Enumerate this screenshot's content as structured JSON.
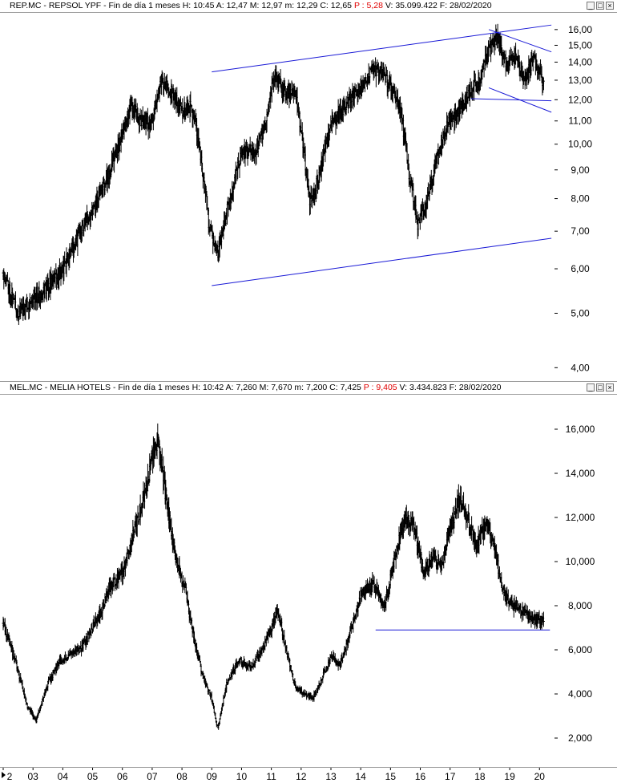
{
  "panels": [
    {
      "title_pre": "REP.MC - REPSOL YPF - Fin de día 1 meses  H: 10:45  A: 12,47  M: 12,97  m: 12,29  C: 12,65  ",
      "title_p": "P : 5,28",
      "title_post": "  V: 35.099.422  F: 28/02/2020",
      "window_controls": [
        "_",
        "□",
        "×"
      ]
    },
    {
      "title_pre": "MEL.MC - MELIA HOTELS - Fin de día 1 meses  H: 10:42  A: 7,260  M: 7,670  m: 7,200  C: 7,425  ",
      "title_p": "P : 9,405",
      "title_post": "  V: 3.434.823  F: 28/02/2020",
      "window_controls": [
        "_",
        "□",
        "×"
      ]
    }
  ],
  "colors": {
    "candle": "#000000",
    "trendline": "#1a1ad6",
    "frame": "#9a9a9a",
    "price_change": "#e00000"
  },
  "chart_data": [
    {
      "type": "candlestick",
      "name": "REP.MC - REPSOL YPF",
      "scale": "log",
      "ylim": [
        3.9,
        16.8
      ],
      "yticks": [
        4,
        5,
        6,
        7,
        8,
        9,
        10,
        11,
        12,
        13,
        14,
        15,
        16
      ],
      "ytick_labels": [
        "4,00",
        "5,00",
        "6,00",
        "7,00",
        "8,00",
        "9,00",
        "10,00",
        "11,00",
        "12,00",
        "13,00",
        "14,00",
        "15,00",
        "16,00"
      ],
      "xlim": [
        2002.0,
        2020.45
      ],
      "anchors": [
        [
          2002.0,
          5.9
        ],
        [
          2002.5,
          5.0
        ],
        [
          2003.0,
          5.3
        ],
        [
          2003.5,
          5.6
        ],
        [
          2004.0,
          6.0
        ],
        [
          2004.5,
          6.8
        ],
        [
          2005.0,
          7.7
        ],
        [
          2005.5,
          8.7
        ],
        [
          2006.0,
          10.3
        ],
        [
          2006.3,
          11.8
        ],
        [
          2006.6,
          11.0
        ],
        [
          2007.0,
          10.9
        ],
        [
          2007.3,
          13.0
        ],
        [
          2007.6,
          12.5
        ],
        [
          2008.0,
          11.5
        ],
        [
          2008.3,
          11.7
        ],
        [
          2008.5,
          10.5
        ],
        [
          2008.9,
          7.2
        ],
        [
          2009.2,
          6.3
        ],
        [
          2009.6,
          8.0
        ],
        [
          2010.0,
          9.6
        ],
        [
          2010.5,
          9.8
        ],
        [
          2010.8,
          10.8
        ],
        [
          2011.1,
          13.2
        ],
        [
          2011.5,
          12.3
        ],
        [
          2011.8,
          12.5
        ],
        [
          2012.0,
          10.5
        ],
        [
          2012.3,
          7.8
        ],
        [
          2012.6,
          8.8
        ],
        [
          2013.0,
          10.8
        ],
        [
          2013.5,
          11.8
        ],
        [
          2014.0,
          12.5
        ],
        [
          2014.4,
          13.6
        ],
        [
          2014.8,
          13.3
        ],
        [
          2015.0,
          12.6
        ],
        [
          2015.3,
          11.8
        ],
        [
          2015.6,
          9.0
        ],
        [
          2015.9,
          7.2
        ],
        [
          2016.2,
          7.8
        ],
        [
          2016.5,
          9.2
        ],
        [
          2016.9,
          10.8
        ],
        [
          2017.3,
          11.4
        ],
        [
          2017.7,
          12.5
        ],
        [
          2018.0,
          13.0
        ],
        [
          2018.3,
          14.8
        ],
        [
          2018.6,
          15.5
        ],
        [
          2018.9,
          13.9
        ],
        [
          2019.2,
          14.2
        ],
        [
          2019.5,
          13.0
        ],
        [
          2019.8,
          14.2
        ],
        [
          2020.0,
          13.4
        ],
        [
          2020.15,
          12.65
        ]
      ],
      "candle_step_years": 0.0833,
      "seed": 11,
      "trendlines": [
        {
          "x1": 2009.0,
          "y1": 13.45,
          "x2": 2020.4,
          "y2": 16.3
        },
        {
          "x1": 2009.0,
          "y1": 5.6,
          "x2": 2020.4,
          "y2": 6.8
        },
        {
          "x1": 2018.3,
          "y1": 16.0,
          "x2": 2020.4,
          "y2": 14.6
        },
        {
          "x1": 2018.3,
          "y1": 12.6,
          "x2": 2020.4,
          "y2": 11.4
        },
        {
          "x1": 2017.7,
          "y1": 12.05,
          "x2": 2020.4,
          "y2": 11.95
        }
      ]
    },
    {
      "type": "candlestick",
      "name": "MEL.MC - MELIA HOTELS",
      "scale": "linear",
      "ylim": [
        1.2,
        17.2
      ],
      "yticks": [
        2,
        4,
        6,
        8,
        10,
        12,
        14,
        16
      ],
      "ytick_labels": [
        "2,000",
        "4,000",
        "6,000",
        "8,000",
        "10,000",
        "12,000",
        "14,000",
        "16,000"
      ],
      "xlim": [
        2002.0,
        2020.45
      ],
      "xticks": [
        2002,
        2003,
        2004,
        2005,
        2006,
        2007,
        2008,
        2009,
        2010,
        2011,
        2012,
        2013,
        2014,
        2015,
        2016,
        2017,
        2018,
        2019,
        2020
      ],
      "xtick_labels": [
        "2",
        "03",
        "04",
        "05",
        "06",
        "07",
        "08",
        "09",
        "10",
        "11",
        "12",
        "13",
        "14",
        "15",
        "16",
        "17",
        "18",
        "19",
        "20"
      ],
      "anchors": [
        [
          2002.0,
          7.2
        ],
        [
          2002.4,
          5.5
        ],
        [
          2002.8,
          3.5
        ],
        [
          2003.1,
          2.8
        ],
        [
          2003.5,
          4.5
        ],
        [
          2003.9,
          5.5
        ],
        [
          2004.3,
          5.8
        ],
        [
          2004.7,
          6.2
        ],
        [
          2005.0,
          7.0
        ],
        [
          2005.3,
          7.8
        ],
        [
          2005.6,
          8.9
        ],
        [
          2006.0,
          9.5
        ],
        [
          2006.4,
          11.5
        ],
        [
          2006.8,
          13.2
        ],
        [
          2007.0,
          14.8
        ],
        [
          2007.2,
          15.6
        ],
        [
          2007.5,
          12.5
        ],
        [
          2007.8,
          10.0
        ],
        [
          2008.1,
          8.8
        ],
        [
          2008.4,
          6.5
        ],
        [
          2008.7,
          4.8
        ],
        [
          2009.0,
          3.8
        ],
        [
          2009.2,
          2.4
        ],
        [
          2009.5,
          4.5
        ],
        [
          2009.9,
          5.5
        ],
        [
          2010.3,
          5.2
        ],
        [
          2010.7,
          6.0
        ],
        [
          2011.0,
          7.0
        ],
        [
          2011.2,
          7.9
        ],
        [
          2011.5,
          6.0
        ],
        [
          2011.8,
          4.3
        ],
        [
          2012.1,
          4.0
        ],
        [
          2012.4,
          3.8
        ],
        [
          2012.7,
          4.7
        ],
        [
          2013.0,
          5.7
        ],
        [
          2013.3,
          5.3
        ],
        [
          2013.6,
          6.5
        ],
        [
          2014.0,
          8.5
        ],
        [
          2014.4,
          9.0
        ],
        [
          2014.8,
          8.0
        ],
        [
          2015.1,
          10.0
        ],
        [
          2015.5,
          12.0
        ],
        [
          2015.8,
          11.5
        ],
        [
          2016.1,
          9.5
        ],
        [
          2016.4,
          10.2
        ],
        [
          2016.7,
          9.8
        ],
        [
          2017.0,
          11.5
        ],
        [
          2017.3,
          12.8
        ],
        [
          2017.6,
          11.8
        ],
        [
          2017.9,
          10.8
        ],
        [
          2018.2,
          11.8
        ],
        [
          2018.5,
          10.5
        ],
        [
          2018.8,
          8.5
        ],
        [
          2019.1,
          8.0
        ],
        [
          2019.4,
          7.8
        ],
        [
          2019.7,
          7.5
        ],
        [
          2019.9,
          7.3
        ],
        [
          2020.15,
          7.425
        ]
      ],
      "candle_step_years": 0.0833,
      "seed": 29,
      "trendlines": [
        {
          "x1": 2014.5,
          "y1": 6.9,
          "x2": 2020.35,
          "y2": 6.9
        }
      ]
    }
  ]
}
